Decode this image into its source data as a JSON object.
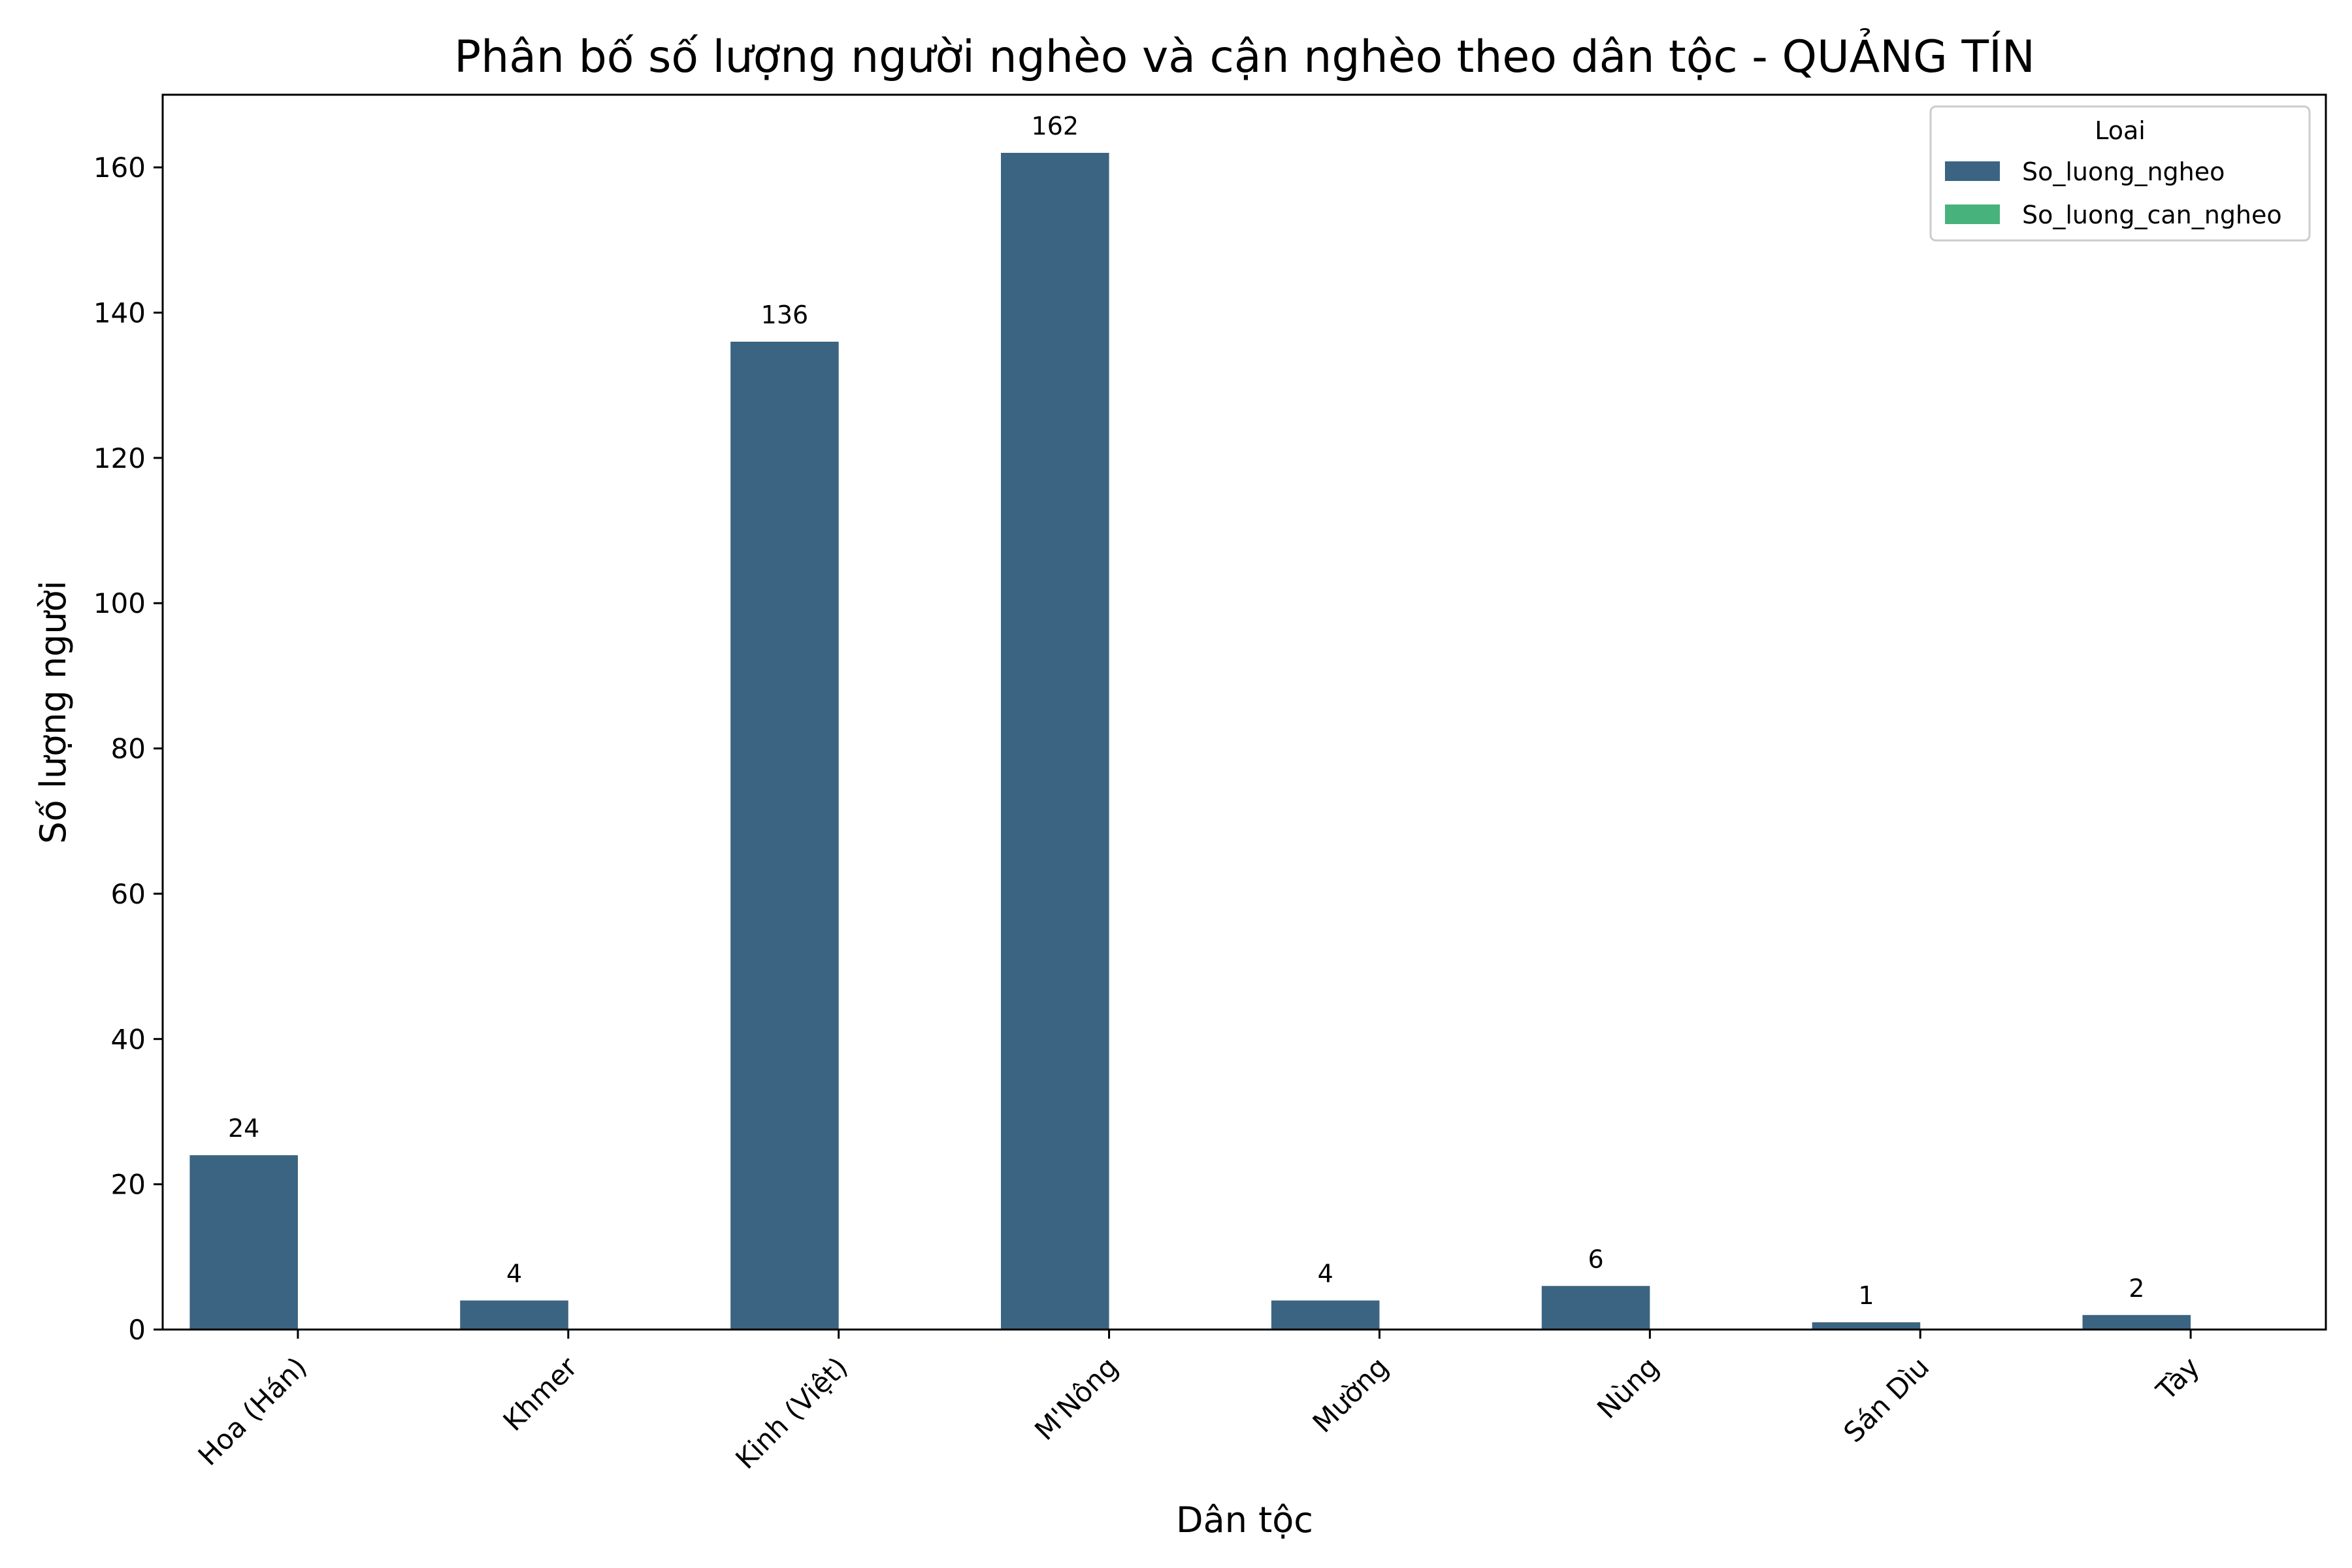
{
  "chart_data": {
    "type": "bar",
    "title": "Phân bố số lượng người nghèo và cận nghèo theo dân tộc - QUẢNG TÍN",
    "xlabel": "Dân tộc",
    "ylabel": "Số lượng người",
    "categories": [
      "Hoa (Hán)",
      "Khmer",
      "Kinh (Việt)",
      "M'Nông",
      "Mường",
      "Nùng",
      "Sán Dìu",
      "Tày"
    ],
    "series": [
      {
        "name": "So_luong_ngheo",
        "values": [
          24,
          4,
          136,
          162,
          4,
          6,
          1,
          2
        ],
        "color": "#3b6482"
      },
      {
        "name": "So_luong_can_ngheo",
        "values": [
          0,
          0,
          0,
          0,
          0,
          0,
          0,
          0
        ],
        "color": "#48b27c"
      }
    ],
    "value_labels": [
      "24",
      "4",
      "136",
      "162",
      "4",
      "6",
      "1",
      "2"
    ],
    "ylim": [
      0,
      170
    ],
    "yticks": [
      0,
      20,
      40,
      60,
      80,
      100,
      120,
      140,
      160
    ],
    "legend": {
      "title": "Loai",
      "placement": "top-right"
    },
    "grid": false
  }
}
